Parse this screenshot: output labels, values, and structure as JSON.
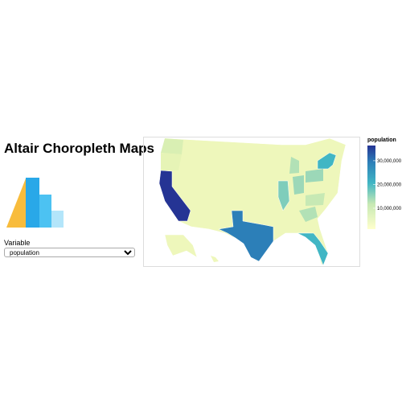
{
  "header": {
    "title": "Altair Choropleth Maps"
  },
  "control": {
    "label": "Variable",
    "selected": "population"
  },
  "legend": {
    "title": "population",
    "domain": [
      1200000,
      36400000
    ],
    "ticks": [
      {
        "value": 10000000,
        "label": "10,000,000"
      },
      {
        "value": 20000000,
        "label": "20,000,000"
      },
      {
        "value": 30000000,
        "label": "30,000,000"
      }
    ]
  }
}
